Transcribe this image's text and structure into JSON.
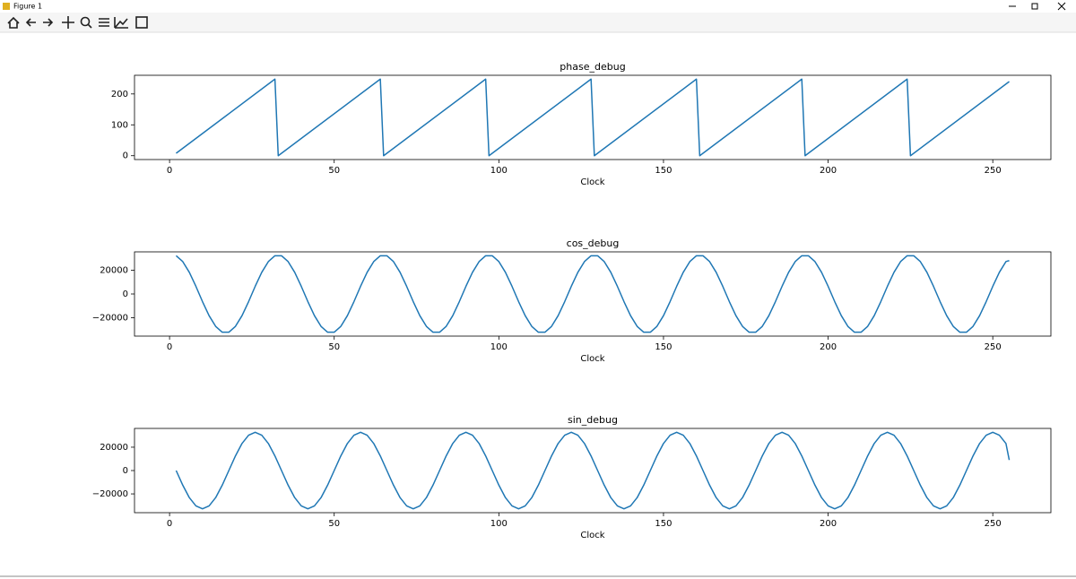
{
  "window": {
    "title": "Figure 1"
  },
  "chart_data": [
    {
      "type": "line",
      "title": "phase_debug",
      "xlabel": "Clock",
      "color": "#1f77b4",
      "x": [
        2,
        32,
        33,
        64,
        65,
        96,
        97,
        128,
        129,
        160,
        161,
        192,
        193,
        224,
        225,
        255
      ],
      "values": [
        8,
        248,
        0,
        248,
        0,
        248,
        0,
        248,
        0,
        248,
        0,
        248,
        0,
        248,
        0,
        240
      ],
      "xlim": [
        -10.65,
        267.65
      ],
      "xticks": [
        0,
        50,
        100,
        150,
        200,
        250
      ],
      "ylim": [
        -12.4,
        260.4
      ],
      "yticks": [
        0,
        100,
        200
      ]
    },
    {
      "type": "line",
      "title": "cos_debug",
      "xlabel": "Clock",
      "color": "#1f77b4",
      "x": [
        2,
        4,
        6,
        8,
        10,
        12,
        14,
        16,
        18,
        20,
        22,
        24,
        26,
        28,
        30,
        32,
        34,
        36,
        38,
        40,
        42,
        44,
        46,
        48,
        50,
        52,
        54,
        56,
        58,
        60,
        62,
        64,
        66,
        68,
        70,
        72,
        74,
        76,
        78,
        80,
        82,
        84,
        86,
        88,
        90,
        92,
        94,
        96,
        98,
        100,
        102,
        104,
        106,
        108,
        110,
        112,
        114,
        116,
        118,
        120,
        122,
        124,
        126,
        128,
        130,
        132,
        134,
        136,
        138,
        140,
        142,
        144,
        146,
        148,
        150,
        152,
        154,
        156,
        158,
        160,
        162,
        164,
        166,
        168,
        170,
        172,
        174,
        176,
        178,
        180,
        182,
        184,
        186,
        188,
        190,
        192,
        194,
        196,
        198,
        200,
        202,
        204,
        206,
        208,
        210,
        212,
        214,
        216,
        218,
        220,
        222,
        224,
        226,
        228,
        230,
        232,
        234,
        236,
        238,
        240,
        242,
        244,
        246,
        248,
        250,
        252,
        254,
        255
      ],
      "values": [
        32100,
        27200,
        18200,
        6400,
        -6400,
        -18200,
        -27200,
        -32100,
        -32100,
        -27200,
        -18200,
        -6400,
        6400,
        18200,
        27200,
        32100,
        32100,
        27200,
        18200,
        6400,
        -6400,
        -18200,
        -27200,
        -32100,
        -32100,
        -27200,
        -18200,
        -6400,
        6400,
        18200,
        27200,
        32100,
        32100,
        27200,
        18200,
        6400,
        -6400,
        -18200,
        -27200,
        -32100,
        -32100,
        -27200,
        -18200,
        -6400,
        6400,
        18200,
        27200,
        32100,
        32100,
        27200,
        18200,
        6400,
        -6400,
        -18200,
        -27200,
        -32100,
        -32100,
        -27200,
        -18200,
        -6400,
        6400,
        18200,
        27200,
        32100,
        32100,
        27200,
        18200,
        6400,
        -6400,
        -18200,
        -27200,
        -32100,
        -32100,
        -27200,
        -18200,
        -6400,
        6400,
        18200,
        27200,
        32100,
        32100,
        27200,
        18200,
        6400,
        -6400,
        -18200,
        -27200,
        -32100,
        -32100,
        -27200,
        -18200,
        -6400,
        6400,
        18200,
        27200,
        32100,
        32100,
        27200,
        18200,
        6400,
        -6400,
        -18200,
        -27200,
        -32100,
        -32100,
        -27200,
        -18200,
        -6400,
        6400,
        18200,
        27200,
        32100,
        32100,
        27200,
        18200,
        6400,
        -6400,
        -18200,
        -27200,
        -32100,
        -32100,
        -27200,
        -18200,
        -6400,
        6400,
        18200,
        27200,
        28000
      ],
      "xlim": [
        -10.65,
        267.65
      ],
      "xticks": [
        0,
        50,
        100,
        150,
        200,
        250
      ],
      "ylim": [
        -35350,
        35350
      ],
      "yticks": [
        {
          "value": -20000,
          "label": "−20000"
        },
        0,
        20000
      ]
    },
    {
      "type": "line",
      "title": "sin_debug",
      "xlabel": "Clock",
      "color": "#1f77b4",
      "x": [
        2,
        4,
        6,
        8,
        10,
        12,
        14,
        16,
        18,
        20,
        22,
        24,
        26,
        28,
        30,
        32,
        34,
        36,
        38,
        40,
        42,
        44,
        46,
        48,
        50,
        52,
        54,
        56,
        58,
        60,
        62,
        64,
        66,
        68,
        70,
        72,
        74,
        76,
        78,
        80,
        82,
        84,
        86,
        88,
        90,
        92,
        94,
        96,
        98,
        100,
        102,
        104,
        106,
        108,
        110,
        112,
        114,
        116,
        118,
        120,
        122,
        124,
        126,
        128,
        130,
        132,
        134,
        136,
        138,
        140,
        142,
        144,
        146,
        148,
        150,
        152,
        154,
        156,
        158,
        160,
        162,
        164,
        166,
        168,
        170,
        172,
        174,
        176,
        178,
        180,
        182,
        184,
        186,
        188,
        190,
        192,
        194,
        196,
        198,
        200,
        202,
        204,
        206,
        208,
        210,
        212,
        214,
        216,
        218,
        220,
        222,
        224,
        226,
        228,
        230,
        232,
        234,
        236,
        238,
        240,
        242,
        244,
        246,
        248,
        250,
        252,
        254,
        255
      ],
      "values": [
        0,
        -12500,
        -23200,
        -30300,
        -32800,
        -30300,
        -23200,
        -12500,
        0,
        12500,
        23200,
        30300,
        32800,
        30300,
        23200,
        12500,
        0,
        -12500,
        -23200,
        -30300,
        -32800,
        -30300,
        -23200,
        -12500,
        0,
        12500,
        23200,
        30300,
        32800,
        30300,
        23200,
        12500,
        0,
        -12500,
        -23200,
        -30300,
        -32800,
        -30300,
        -23200,
        -12500,
        0,
        12500,
        23200,
        30300,
        32800,
        30300,
        23200,
        12500,
        0,
        -12500,
        -23200,
        -30300,
        -32800,
        -30300,
        -23200,
        -12500,
        0,
        12500,
        23200,
        30300,
        32800,
        30300,
        23200,
        12500,
        0,
        -12500,
        -23200,
        -30300,
        -32800,
        -30300,
        -23200,
        -12500,
        0,
        12500,
        23200,
        30300,
        32800,
        30300,
        23200,
        12500,
        0,
        -12500,
        -23200,
        -30300,
        -32800,
        -30300,
        -23200,
        -12500,
        0,
        12500,
        23200,
        30300,
        32800,
        30300,
        23200,
        12500,
        0,
        -12500,
        -23200,
        -30300,
        -32800,
        -30300,
        -23200,
        -12500,
        0,
        12500,
        23200,
        30300,
        32800,
        30300,
        23200,
        12500,
        0,
        -12500,
        -23200,
        -30300,
        -32800,
        -30300,
        -23200,
        -12500,
        0,
        12500,
        23200,
        30300,
        32800,
        30300,
        23200,
        9000
      ],
      "xlim": [
        -10.65,
        267.65
      ],
      "xticks": [
        0,
        50,
        100,
        150,
        200,
        250
      ],
      "ylim": [
        -36080,
        36080
      ],
      "yticks": [
        {
          "value": -20000,
          "label": "−20000"
        },
        0,
        20000
      ]
    }
  ]
}
